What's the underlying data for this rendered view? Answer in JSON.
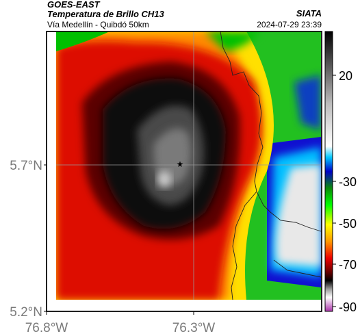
{
  "header": {
    "satellite": "GOES-EAST",
    "product": "Temperatura de Brillo CH13",
    "route": "Vía Medellín - Quibdó 50km",
    "brand": "SIATA",
    "datetime": "2024-07-29 23:39"
  },
  "map": {
    "lat_ticks": [
      "5.7°N",
      "5.2°N"
    ],
    "lon_ticks": [
      "76.8°W",
      "76.3°W"
    ],
    "gridlines": true,
    "marker": "star-icon"
  },
  "colorbar": {
    "ticks": [
      "20",
      "-30",
      "-50",
      "-70",
      "-90"
    ],
    "colors": {
      "warm_top": "#111111",
      "gray": "#bfbfbf",
      "cyan": "#00c8ff",
      "blue": "#0000cc",
      "green": "#00d000",
      "yellow": "#ffff00",
      "orange": "#ff8800",
      "red": "#e00000",
      "dark_red": "#500000",
      "magenta": "#c040c0"
    }
  }
}
